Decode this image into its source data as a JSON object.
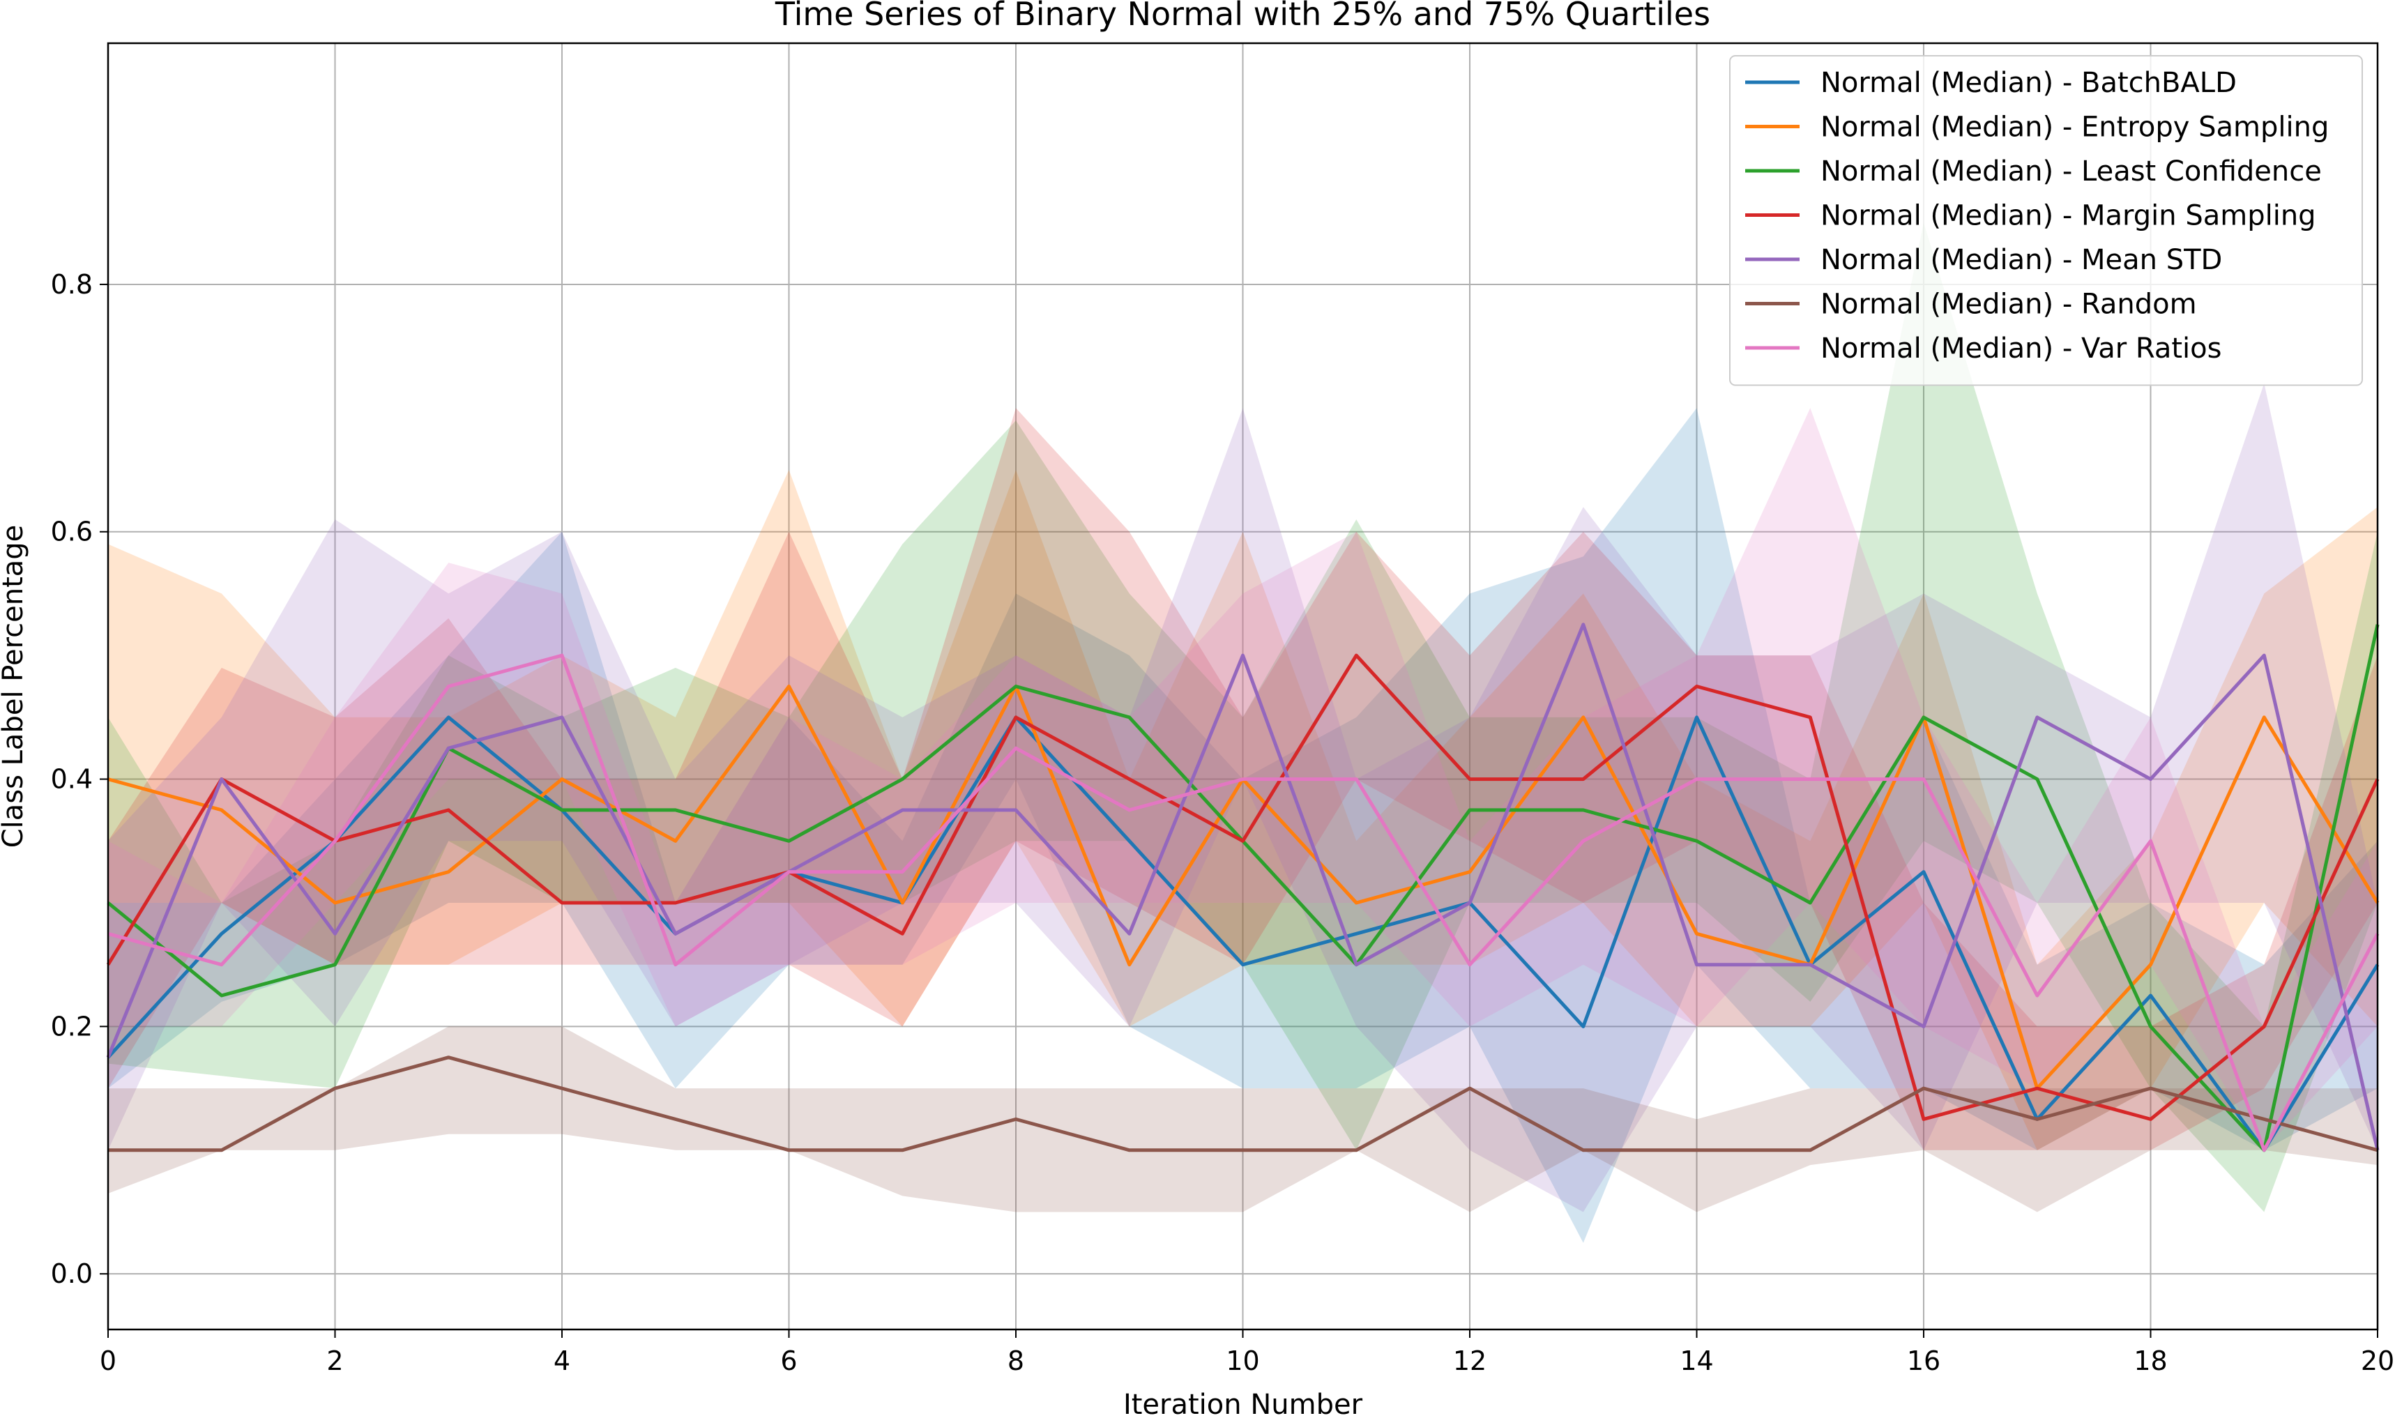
{
  "chart_data": {
    "type": "line",
    "title": "Time Series of Binary Normal with 25% and 75% Quartiles",
    "xlabel": "Iteration Number",
    "ylabel": "Class Label Percentage",
    "xlim": [
      0,
      20
    ],
    "ylim": [
      -0.045,
      0.995
    ],
    "x_ticks": [
      0,
      2,
      4,
      6,
      8,
      10,
      12,
      14,
      16,
      18,
      20
    ],
    "y_ticks": [
      0.0,
      0.2,
      0.4,
      0.6,
      0.8
    ],
    "x_tick_labels": [
      "0",
      "2",
      "4",
      "6",
      "8",
      "10",
      "12",
      "14",
      "16",
      "18",
      "20"
    ],
    "y_tick_labels": [
      "0.0",
      "0.2",
      "0.4",
      "0.6",
      "0.8"
    ],
    "grid": true,
    "legend_position": "top-right",
    "x": [
      0,
      1,
      2,
      3,
      4,
      5,
      6,
      7,
      8,
      9,
      10,
      11,
      12,
      13,
      14,
      15,
      16,
      17,
      18,
      19,
      20
    ],
    "series": [
      {
        "name": "Normal (Median) - BatchBALD",
        "color": "#1f77b4",
        "median": [
          0.175,
          0.275,
          0.35,
          0.45,
          0.375,
          0.275,
          0.325,
          0.3,
          0.45,
          0.35,
          0.25,
          0.275,
          0.3,
          0.2,
          0.45,
          0.25,
          0.325,
          0.125,
          0.225,
          0.1,
          0.25
        ],
        "q25": [
          0.15,
          0.22,
          0.25,
          0.3,
          0.3,
          0.15,
          0.25,
          0.25,
          0.4,
          0.2,
          0.15,
          0.15,
          0.2,
          0.025,
          0.25,
          0.15,
          0.15,
          0.1,
          0.15,
          0.1,
          0.15
        ],
        "q75": [
          0.3,
          0.3,
          0.4,
          0.5,
          0.6,
          0.3,
          0.45,
          0.35,
          0.55,
          0.5,
          0.4,
          0.45,
          0.55,
          0.58,
          0.7,
          0.3,
          0.45,
          0.25,
          0.3,
          0.25,
          0.35
        ]
      },
      {
        "name": "Normal (Median) - Entropy Sampling",
        "color": "#ff7f0e",
        "median": [
          0.4,
          0.375,
          0.3,
          0.325,
          0.4,
          0.35,
          0.475,
          0.3,
          0.475,
          0.25,
          0.4,
          0.3,
          0.325,
          0.45,
          0.275,
          0.25,
          0.45,
          0.15,
          0.25,
          0.45,
          0.3
        ],
        "q25": [
          0.3,
          0.3,
          0.25,
          0.25,
          0.3,
          0.3,
          0.3,
          0.2,
          0.35,
          0.2,
          0.25,
          0.25,
          0.25,
          0.3,
          0.2,
          0.2,
          0.3,
          0.1,
          0.15,
          0.3,
          0.2
        ],
        "q75": [
          0.59,
          0.55,
          0.45,
          0.45,
          0.5,
          0.45,
          0.65,
          0.4,
          0.65,
          0.4,
          0.6,
          0.35,
          0.45,
          0.55,
          0.4,
          0.35,
          0.55,
          0.25,
          0.35,
          0.55,
          0.62
        ]
      },
      {
        "name": "Normal (Median) - Least Confidence",
        "color": "#2ca02c",
        "median": [
          0.3,
          0.225,
          0.25,
          0.425,
          0.375,
          0.375,
          0.35,
          0.4,
          0.475,
          0.45,
          0.35,
          0.25,
          0.375,
          0.375,
          0.35,
          0.3,
          0.45,
          0.4,
          0.2,
          0.1,
          0.525
        ],
        "q25": [
          0.17,
          0.16,
          0.15,
          0.35,
          0.3,
          0.3,
          0.3,
          0.3,
          0.35,
          0.35,
          0.25,
          0.1,
          0.3,
          0.3,
          0.3,
          0.22,
          0.35,
          0.3,
          0.15,
          0.05,
          0.3
        ],
        "q75": [
          0.45,
          0.3,
          0.35,
          0.5,
          0.45,
          0.49,
          0.45,
          0.59,
          0.69,
          0.55,
          0.45,
          0.61,
          0.45,
          0.45,
          0.45,
          0.4,
          0.85,
          0.55,
          0.3,
          0.2,
          0.6
        ]
      },
      {
        "name": "Normal (Median) - Margin Sampling",
        "color": "#d62728",
        "median": [
          0.25,
          0.4,
          0.35,
          0.375,
          0.3,
          0.3,
          0.325,
          0.275,
          0.45,
          0.4,
          0.35,
          0.5,
          0.4,
          0.4,
          0.475,
          0.45,
          0.125,
          0.15,
          0.125,
          0.2,
          0.4
        ],
        "q25": [
          0.15,
          0.3,
          0.25,
          0.25,
          0.25,
          0.25,
          0.25,
          0.2,
          0.35,
          0.3,
          0.25,
          0.4,
          0.35,
          0.3,
          0.35,
          0.3,
          0.1,
          0.1,
          0.1,
          0.15,
          0.3
        ],
        "q75": [
          0.35,
          0.49,
          0.45,
          0.53,
          0.4,
          0.4,
          0.6,
          0.4,
          0.7,
          0.6,
          0.45,
          0.6,
          0.5,
          0.6,
          0.5,
          0.5,
          0.3,
          0.2,
          0.2,
          0.25,
          0.5
        ]
      },
      {
        "name": "Normal (Median) - Mean STD",
        "color": "#9467bd",
        "median": [
          0.175,
          0.4,
          0.275,
          0.425,
          0.45,
          0.275,
          0.325,
          0.375,
          0.375,
          0.275,
          0.5,
          0.25,
          0.3,
          0.525,
          0.25,
          0.25,
          0.2,
          0.45,
          0.4,
          0.5,
          0.1
        ],
        "q25": [
          0.1,
          0.3,
          0.2,
          0.35,
          0.35,
          0.2,
          0.25,
          0.3,
          0.3,
          0.2,
          0.4,
          0.2,
          0.1,
          0.05,
          0.2,
          0.2,
          0.1,
          0.3,
          0.3,
          0.3,
          0.1
        ],
        "q75": [
          0.35,
          0.45,
          0.61,
          0.55,
          0.6,
          0.4,
          0.5,
          0.45,
          0.5,
          0.45,
          0.7,
          0.4,
          0.45,
          0.62,
          0.5,
          0.5,
          0.55,
          0.5,
          0.45,
          0.72,
          0.3
        ]
      },
      {
        "name": "Normal (Median) - Random",
        "color": "#8c564b",
        "median": [
          0.1,
          0.1,
          0.15,
          0.175,
          0.15,
          0.125,
          0.1,
          0.1,
          0.125,
          0.1,
          0.1,
          0.1,
          0.15,
          0.1,
          0.1,
          0.1,
          0.15,
          0.125,
          0.15,
          0.125,
          0.1
        ],
        "q25": [
          0.065,
          0.1,
          0.1,
          0.113,
          0.113,
          0.1,
          0.1,
          0.063,
          0.05,
          0.05,
          0.05,
          0.1,
          0.05,
          0.1,
          0.05,
          0.088,
          0.1,
          0.05,
          0.1,
          0.1,
          0.088
        ],
        "q75": [
          0.15,
          0.15,
          0.15,
          0.2,
          0.2,
          0.15,
          0.15,
          0.15,
          0.15,
          0.15,
          0.15,
          0.15,
          0.15,
          0.15,
          0.125,
          0.15,
          0.15,
          0.15,
          0.15,
          0.15,
          0.15
        ]
      },
      {
        "name": "Normal (Median) - Var Ratios",
        "color": "#e377c2",
        "median": [
          0.275,
          0.25,
          0.35,
          0.475,
          0.5,
          0.25,
          0.325,
          0.325,
          0.425,
          0.375,
          0.4,
          0.4,
          0.25,
          0.35,
          0.4,
          0.4,
          0.4,
          0.225,
          0.35,
          0.1,
          0.275
        ],
        "q25": [
          0.2,
          0.2,
          0.3,
          0.4,
          0.4,
          0.2,
          0.25,
          0.25,
          0.3,
          0.3,
          0.3,
          0.3,
          0.2,
          0.25,
          0.2,
          0.3,
          0.2,
          0.15,
          0.25,
          0.1,
          0.2
        ],
        "q75": [
          0.35,
          0.3,
          0.45,
          0.575,
          0.55,
          0.3,
          0.45,
          0.4,
          0.5,
          0.45,
          0.55,
          0.6,
          0.35,
          0.45,
          0.5,
          0.7,
          0.45,
          0.3,
          0.45,
          0.2,
          0.35
        ]
      }
    ]
  }
}
